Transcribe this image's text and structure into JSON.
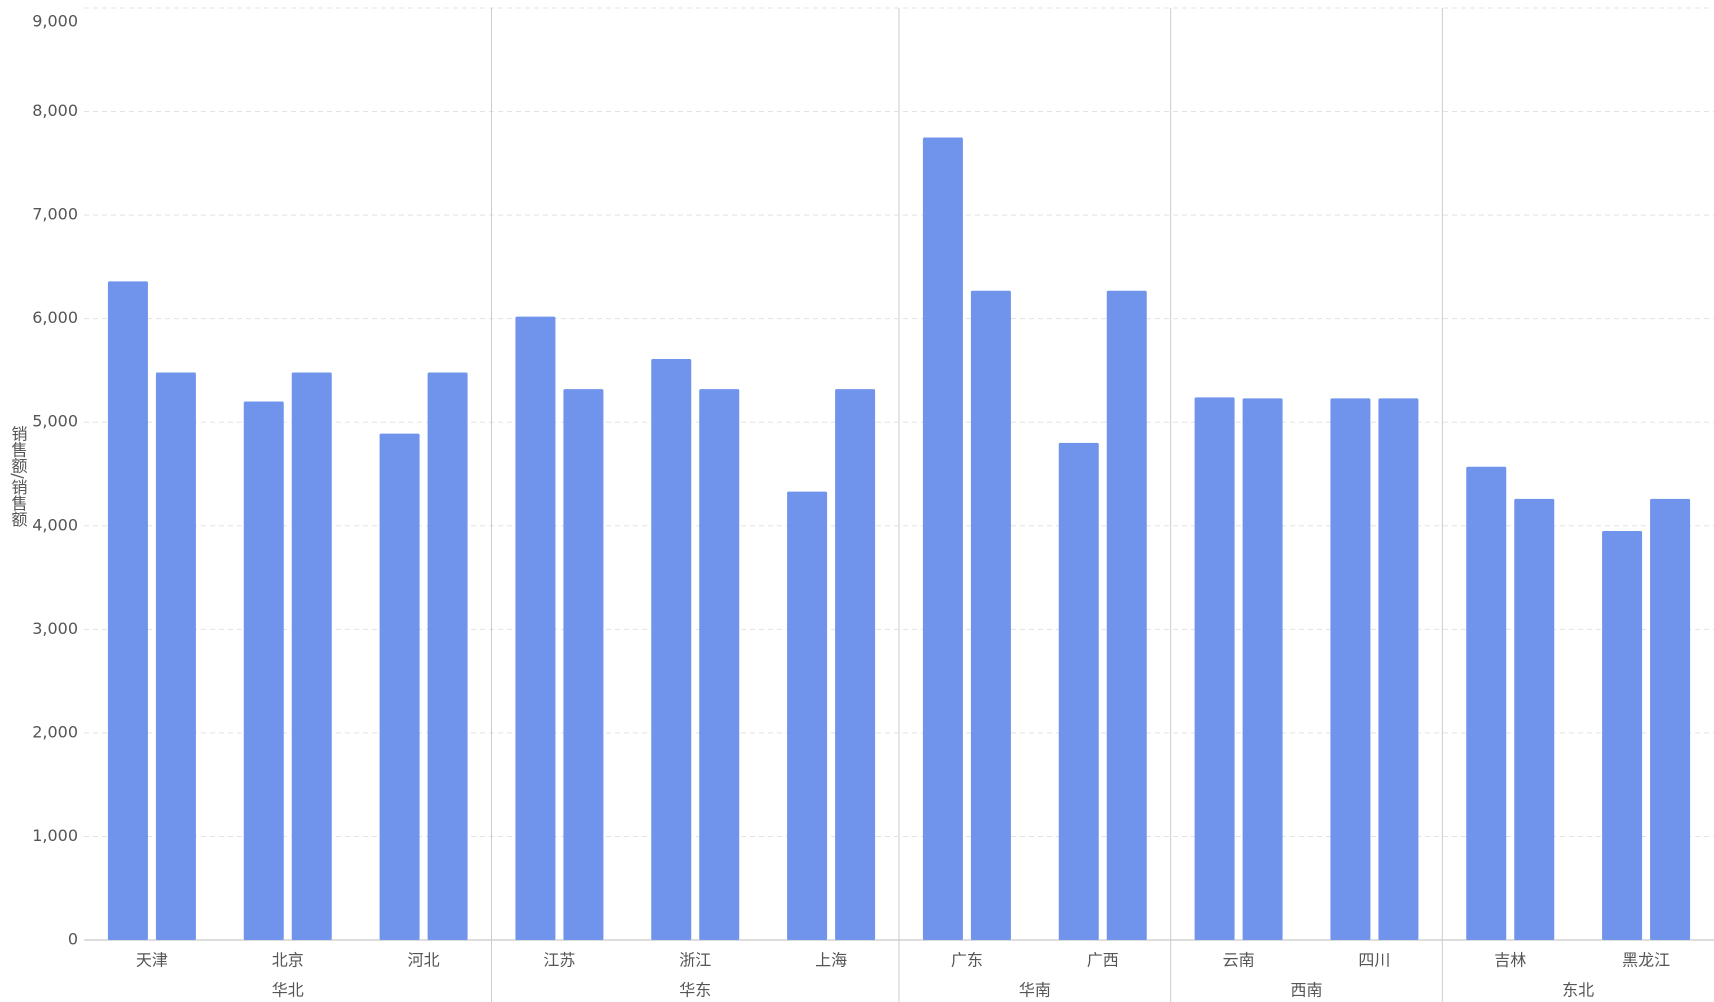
{
  "chart_data": {
    "type": "bar",
    "y_label": "销售额/销售额",
    "groups": [
      {
        "label": "华北",
        "categories": [
          "天津",
          "北京",
          "河北"
        ]
      },
      {
        "label": "华东",
        "categories": [
          "江苏",
          "浙江",
          "上海"
        ]
      },
      {
        "label": "华南",
        "categories": [
          "广东",
          "广西"
        ]
      },
      {
        "label": "西南",
        "categories": [
          "云南",
          "四川"
        ]
      },
      {
        "label": "东北",
        "categories": [
          "吉林",
          "黑龙江"
        ]
      }
    ],
    "series": [
      {
        "color": "#7094eb",
        "values": [
          6360,
          5200,
          4890,
          6020,
          5610,
          4330,
          7750,
          4800,
          5240,
          5230,
          4570,
          3950
        ]
      },
      {
        "color": "#7094eb",
        "values": [
          5480,
          5480,
          5480,
          5320,
          5320,
          5320,
          6270,
          6270,
          5230,
          5230,
          4260,
          4260
        ]
      }
    ],
    "ylim": [
      0,
      9000
    ],
    "yticks": [
      0,
      {
        "value": 1000,
        "label": "1,000"
      },
      {
        "value": 2000,
        "label": "2,000"
      },
      {
        "value": 3000,
        "label": "3,000"
      },
      {
        "value": 4000,
        "label": "4,000"
      },
      {
        "value": 5000,
        "label": "5,000"
      },
      {
        "value": 6000,
        "label": "6,000"
      },
      {
        "value": 7000,
        "label": "7,000"
      },
      {
        "value": 8000,
        "label": "8,000"
      },
      {
        "value": 9000,
        "label": "9,000"
      }
    ],
    "grid": true
  }
}
